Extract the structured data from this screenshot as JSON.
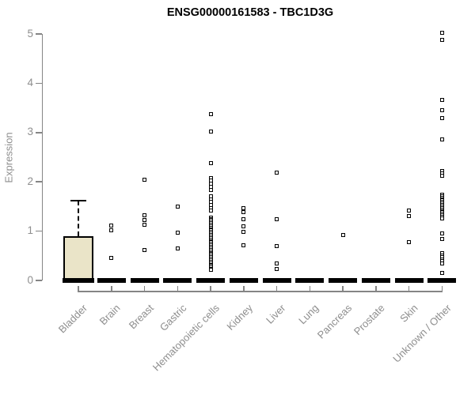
{
  "colors": {
    "background": "#ffffff",
    "axis": "#858585",
    "tick_text": "#8e8e8e",
    "title_text": "#000000",
    "box_fill": "#EAE4C8",
    "box_border": "#000000",
    "point": "#000000",
    "zero_bar": "#000000"
  },
  "chart_data": {
    "type": "boxplot-scatter",
    "title": "ENSG00000161583 - TBC1D3G",
    "xlabel": "",
    "ylabel": "Expression",
    "ylim": [
      0,
      5
    ],
    "yticks": [
      0,
      1,
      2,
      3,
      4,
      5
    ],
    "grid": false,
    "legend": null,
    "categories": [
      "Bladder",
      "Brain",
      "Breast",
      "Gastric",
      "Hematopoietic cells",
      "Kidney",
      "Liver",
      "Lung",
      "Pancreas",
      "Prostate",
      "Skin",
      "Unknown / Other"
    ],
    "groups": [
      {
        "label": "Bladder",
        "box": {
          "q1": 0,
          "median": 0,
          "q3": 0.9,
          "whisker_low": 0,
          "whisker_high": 1.62
        },
        "points": []
      },
      {
        "label": "Brain",
        "box": {
          "q1": 0,
          "median": 0,
          "q3": 0,
          "whisker_low": 0,
          "whisker_high": 0
        },
        "points": [
          1.12,
          1.02,
          0.45
        ]
      },
      {
        "label": "Breast",
        "box": {
          "q1": 0,
          "median": 0,
          "q3": 0,
          "whisker_low": 0,
          "whisker_high": 0
        },
        "points": [
          2.05,
          1.32,
          1.22,
          1.13,
          0.62
        ]
      },
      {
        "label": "Gastric",
        "box": {
          "q1": 0,
          "median": 0,
          "q3": 0,
          "whisker_low": 0,
          "whisker_high": 0
        },
        "points": [
          1.5,
          0.97,
          0.65
        ]
      },
      {
        "label": "Hematopoietic cells",
        "box": {
          "q1": 0,
          "median": 0,
          "q3": 0,
          "whisker_low": 0,
          "whisker_high": 0
        },
        "points": [
          3.38,
          3.02,
          2.38,
          2.08,
          2.02,
          1.96,
          1.9,
          1.84,
          1.71,
          1.65,
          1.59,
          1.53,
          1.47,
          1.42,
          1.28,
          1.25,
          1.22,
          1.19,
          1.16,
          1.13,
          1.1,
          1.07,
          1.04,
          1.01,
          0.98,
          0.95,
          0.92,
          0.89,
          0.86,
          0.83,
          0.8,
          0.77,
          0.74,
          0.71,
          0.68,
          0.65,
          0.62,
          0.59,
          0.56,
          0.53,
          0.5,
          0.47,
          0.44,
          0.41,
          0.38,
          0.35,
          0.32,
          0.29,
          0.26,
          0.23,
          0.21
        ]
      },
      {
        "label": "Kidney",
        "box": {
          "q1": 0,
          "median": 0,
          "q3": 0,
          "whisker_low": 0,
          "whisker_high": 0
        },
        "points": [
          1.47,
          1.38,
          1.24,
          1.09,
          0.99,
          0.71
        ]
      },
      {
        "label": "Liver",
        "box": {
          "q1": 0,
          "median": 0,
          "q3": 0,
          "whisker_low": 0,
          "whisker_high": 0
        },
        "points": [
          2.19,
          1.24,
          0.69,
          0.34,
          0.23
        ]
      },
      {
        "label": "Lung",
        "box": {
          "q1": 0,
          "median": 0,
          "q3": 0,
          "whisker_low": 0,
          "whisker_high": 0
        },
        "points": []
      },
      {
        "label": "Pancreas",
        "box": {
          "q1": 0,
          "median": 0,
          "q3": 0,
          "whisker_low": 0,
          "whisker_high": 0
        },
        "points": [
          0.92
        ]
      },
      {
        "label": "Prostate",
        "box": {
          "q1": 0,
          "median": 0,
          "q3": 0,
          "whisker_low": 0,
          "whisker_high": 0
        },
        "points": []
      },
      {
        "label": "Skin",
        "box": {
          "q1": 0,
          "median": 0,
          "q3": 0,
          "whisker_low": 0,
          "whisker_high": 0
        },
        "points": [
          1.42,
          1.3,
          0.78
        ]
      },
      {
        "label": "Unknown / Other",
        "box": {
          "q1": 0,
          "median": 0,
          "q3": 0,
          "whisker_low": 0,
          "whisker_high": 0
        },
        "points": [
          5.03,
          4.88,
          3.66,
          3.46,
          3.29,
          2.86,
          2.22,
          2.17,
          2.12,
          1.74,
          1.71,
          1.68,
          1.65,
          1.62,
          1.59,
          1.56,
          1.53,
          1.5,
          1.47,
          1.44,
          1.41,
          1.38,
          1.35,
          1.32,
          1.29,
          1.26,
          0.96,
          0.84,
          0.55,
          0.51,
          0.47,
          0.43,
          0.39,
          0.35,
          0.15
        ]
      }
    ]
  }
}
